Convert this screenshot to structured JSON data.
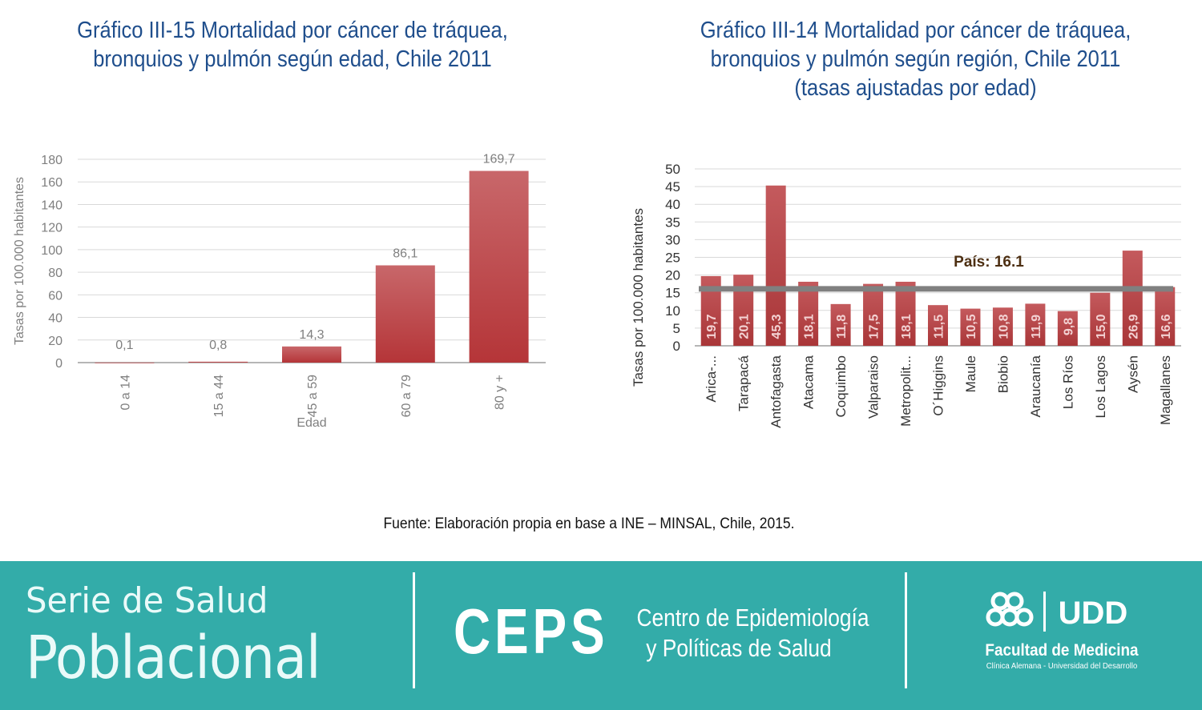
{
  "title_left": [
    "Gráfico III-15 Mortalidad por cáncer de tráquea,",
    "bronquios y pulmón según edad, Chile 2011"
  ],
  "title_right": [
    "Gráfico III-14 Mortalidad por  cáncer de tráquea,",
    "bronquios y pulmón según región, Chile 2011",
    "(tasas ajustadas por edad)"
  ],
  "source": "Fuente: Elaboración propia en base a INE – MINSAL, Chile, 2015.",
  "footer": {
    "serie_line1": "Serie de Salud",
    "serie_line2": "Poblacional",
    "ceps": "CEPS",
    "ceps_sub1": "Centro de Epidemiología",
    "ceps_sub2": "y Políticas de Salud",
    "faculty": "Facultad de Medicina",
    "faculty_sub": "Clínica Alemana - Universidad del Desarrollo",
    "udd": "UDD"
  },
  "colors": {
    "bar": "#c0474a",
    "title": "#1f4e8c",
    "footer_bg": "#33aca9",
    "country_line": "#808080"
  },
  "chart_data": [
    {
      "type": "bar",
      "categories": [
        "0 a 14",
        "15 a 44",
        "45 a 59",
        "60 a 79",
        "80 y +"
      ],
      "values": [
        0.1,
        0.8,
        14.3,
        86.1,
        169.7
      ],
      "value_labels": [
        "0,1",
        "0,8",
        "14,3",
        "86,1",
        "169,7"
      ],
      "xlabel": "Edad",
      "ylabel": "Tasas por 100.000 habitantes",
      "ylim": [
        0,
        180
      ],
      "yticks": [
        0,
        20,
        40,
        60,
        80,
        100,
        120,
        140,
        160,
        180
      ],
      "grid": true
    },
    {
      "type": "bar",
      "categories": [
        "Arica-...",
        "Tarapacá",
        "Antofagasta",
        "Atacama",
        "Coquimbo",
        "Valparaiso",
        "Metropolit...",
        "O´Higgins",
        "Maule",
        "Biobio",
        "Araucanía",
        "Los Ríos",
        "Los Lagos",
        "Aysén",
        "Magallanes"
      ],
      "values": [
        19.7,
        20.1,
        45.3,
        18.1,
        11.8,
        17.5,
        18.1,
        11.5,
        10.5,
        10.8,
        11.9,
        9.8,
        15.0,
        26.9,
        16.6
      ],
      "value_labels": [
        "19,7",
        "20,1",
        "45,3",
        "18,1",
        "11,8",
        "17,5",
        "18,1",
        "11,5",
        "10,5",
        "10,8",
        "11,9",
        "9,8",
        "15,0",
        "26,9",
        "16,6"
      ],
      "xlabel": "",
      "ylabel": "Tasas por 100.000 habitantes",
      "ylim": [
        0,
        50
      ],
      "yticks": [
        0,
        5,
        10,
        15,
        20,
        25,
        30,
        35,
        40,
        45,
        50
      ],
      "reference_line": {
        "label": "País: 16.1",
        "value": 16.1
      },
      "grid": true
    }
  ]
}
